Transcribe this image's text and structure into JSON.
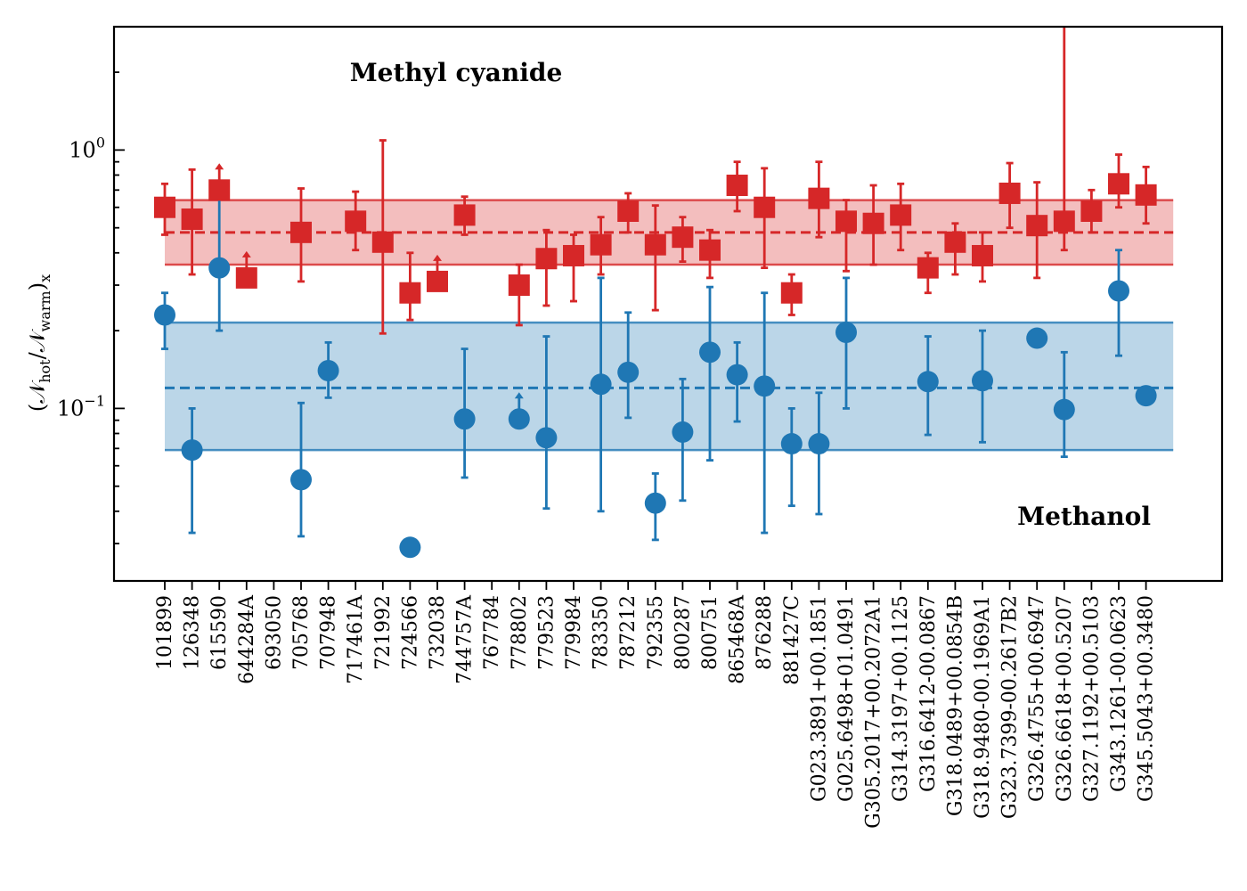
{
  "chart_data": {
    "type": "scatter",
    "title": "",
    "xlabel": "",
    "ylabel_main": "(𝒩",
    "ylabel_sub_hot": "hot",
    "ylabel_mid": "/𝒩",
    "ylabel_sub_warm": "warm",
    "ylabel_close": ")",
    "ylabel_sub_x": "x",
    "yscale": "log",
    "ylim": [
      0.0215,
      3.0
    ],
    "yticks": [
      {
        "value": 1.0,
        "base": "10",
        "exp": "0"
      },
      {
        "value": 0.1,
        "base": "10",
        "exp": "−1"
      }
    ],
    "grid": false,
    "categories": [
      "101899",
      "126348",
      "615590",
      "644284A",
      "693050",
      "705768",
      "707948",
      "717461A",
      "721992",
      "724566",
      "732038",
      "744757A",
      "767784",
      "778802",
      "779523",
      "779984",
      "783350",
      "787212",
      "792355",
      "800287",
      "800751",
      "865468A",
      "876288",
      "881427C",
      "G023.3891+00.1851",
      "G025.6498+01.0491",
      "G305.2017+00.2072A1",
      "G314.3197+00.1125",
      "G316.6412-00.0867",
      "G318.0489+00.0854B",
      "G318.9480-00.1969A1",
      "G323.7399-00.2617B2",
      "G326.4755+00.6947",
      "G326.6618+00.5207",
      "G327.1192+00.5103",
      "G343.1261-00.0623",
      "G345.5043+00.3480"
    ],
    "series": [
      {
        "name": "Methyl cyanide",
        "color": "#d62728",
        "marker": "square",
        "points": [
          {
            "cat": 0,
            "y": 0.6,
            "lo": 0.47,
            "hi": 0.74
          },
          {
            "cat": 1,
            "y": 0.54,
            "lo": 0.33,
            "hi": 0.84
          },
          {
            "cat": 2,
            "y": 0.7,
            "limit": "lower"
          },
          {
            "cat": 3,
            "y": 0.32,
            "limit": "lower"
          },
          {
            "cat": 5,
            "y": 0.48,
            "lo": 0.31,
            "hi": 0.71
          },
          {
            "cat": 7,
            "y": 0.53,
            "lo": 0.41,
            "hi": 0.69
          },
          {
            "cat": 8,
            "y": 0.44,
            "lo": 0.195,
            "hi": 1.09
          },
          {
            "cat": 9,
            "y": 0.28,
            "lo": 0.22,
            "hi": 0.4
          },
          {
            "cat": 10,
            "y": 0.31,
            "limit": "lower"
          },
          {
            "cat": 11,
            "y": 0.56,
            "lo": 0.47,
            "hi": 0.66
          },
          {
            "cat": 13,
            "y": 0.3,
            "lo": 0.21,
            "hi": 0.36
          },
          {
            "cat": 14,
            "y": 0.38,
            "lo": 0.25,
            "hi": 0.49
          },
          {
            "cat": 15,
            "y": 0.39,
            "lo": 0.26,
            "hi": 0.47
          },
          {
            "cat": 16,
            "y": 0.43,
            "lo": 0.33,
            "hi": 0.55
          },
          {
            "cat": 17,
            "y": 0.58,
            "lo": 0.48,
            "hi": 0.68
          },
          {
            "cat": 18,
            "y": 0.43,
            "lo": 0.24,
            "hi": 0.61
          },
          {
            "cat": 19,
            "y": 0.46,
            "lo": 0.37,
            "hi": 0.55
          },
          {
            "cat": 20,
            "y": 0.41,
            "lo": 0.32,
            "hi": 0.49
          },
          {
            "cat": 21,
            "y": 0.73,
            "lo": 0.58,
            "hi": 0.9
          },
          {
            "cat": 22,
            "y": 0.6,
            "lo": 0.35,
            "hi": 0.85
          },
          {
            "cat": 23,
            "y": 0.28,
            "lo": 0.23,
            "hi": 0.33
          },
          {
            "cat": 24,
            "y": 0.65,
            "lo": 0.46,
            "hi": 0.9
          },
          {
            "cat": 25,
            "y": 0.53,
            "lo": 0.34,
            "hi": 0.64
          },
          {
            "cat": 26,
            "y": 0.52,
            "lo": 0.36,
            "hi": 0.73
          },
          {
            "cat": 27,
            "y": 0.56,
            "lo": 0.41,
            "hi": 0.74
          },
          {
            "cat": 28,
            "y": 0.35,
            "lo": 0.28,
            "hi": 0.4
          },
          {
            "cat": 29,
            "y": 0.44,
            "lo": 0.33,
            "hi": 0.52
          },
          {
            "cat": 30,
            "y": 0.39,
            "lo": 0.31,
            "hi": 0.48
          },
          {
            "cat": 31,
            "y": 0.68,
            "lo": 0.5,
            "hi": 0.89
          },
          {
            "cat": 32,
            "y": 0.51,
            "lo": 0.32,
            "hi": 0.75
          },
          {
            "cat": 33,
            "y": 0.53,
            "lo": 0.41,
            "hi": 3.0
          },
          {
            "cat": 34,
            "y": 0.58,
            "lo": 0.48,
            "hi": 0.7
          },
          {
            "cat": 35,
            "y": 0.74,
            "lo": 0.6,
            "hi": 0.96
          },
          {
            "cat": 36,
            "y": 0.67,
            "lo": 0.52,
            "hi": 0.86
          }
        ],
        "median": 0.48,
        "band": [
          0.36,
          0.64
        ]
      },
      {
        "name": "Methanol",
        "color": "#1f77b4",
        "marker": "circle",
        "points": [
          {
            "cat": 0,
            "y": 0.23,
            "lo": 0.17,
            "hi": 0.28
          },
          {
            "cat": 1,
            "y": 0.069,
            "lo": 0.033,
            "hi": 0.1
          },
          {
            "cat": 2,
            "y": 0.35,
            "lo": 0.2,
            "hi": 0.68
          },
          {
            "cat": 5,
            "y": 0.053,
            "lo": 0.032,
            "hi": 0.105
          },
          {
            "cat": 6,
            "y": 0.14,
            "lo": 0.11,
            "hi": 0.18
          },
          {
            "cat": 9,
            "y": 0.029
          },
          {
            "cat": 11,
            "y": 0.091,
            "lo": 0.054,
            "hi": 0.17
          },
          {
            "cat": 13,
            "y": 0.091,
            "limit": "lower"
          },
          {
            "cat": 14,
            "y": 0.077,
            "lo": 0.041,
            "hi": 0.19
          },
          {
            "cat": 16,
            "y": 0.124,
            "lo": 0.04,
            "hi": 0.32
          },
          {
            "cat": 17,
            "y": 0.138,
            "lo": 0.092,
            "hi": 0.235
          },
          {
            "cat": 18,
            "y": 0.043,
            "lo": 0.031,
            "hi": 0.056
          },
          {
            "cat": 19,
            "y": 0.081,
            "lo": 0.044,
            "hi": 0.13
          },
          {
            "cat": 20,
            "y": 0.165,
            "lo": 0.063,
            "hi": 0.295
          },
          {
            "cat": 21,
            "y": 0.135,
            "lo": 0.089,
            "hi": 0.18
          },
          {
            "cat": 22,
            "y": 0.122,
            "lo": 0.033,
            "hi": 0.28
          },
          {
            "cat": 23,
            "y": 0.073,
            "lo": 0.042,
            "hi": 0.1
          },
          {
            "cat": 24,
            "y": 0.073,
            "lo": 0.039,
            "hi": 0.115
          },
          {
            "cat": 25,
            "y": 0.197,
            "lo": 0.1,
            "hi": 0.32
          },
          {
            "cat": 28,
            "y": 0.127,
            "lo": 0.079,
            "hi": 0.19
          },
          {
            "cat": 30,
            "y": 0.128,
            "lo": 0.074,
            "hi": 0.2
          },
          {
            "cat": 32,
            "y": 0.187
          },
          {
            "cat": 33,
            "y": 0.099,
            "lo": 0.065,
            "hi": 0.165
          },
          {
            "cat": 35,
            "y": 0.285,
            "lo": 0.16,
            "hi": 0.41
          },
          {
            "cat": 36,
            "y": 0.112
          }
        ],
        "median": 0.12,
        "band": [
          0.069,
          0.215
        ]
      }
    ],
    "annotations": [
      {
        "text": "Methyl cyanide",
        "color": "#d94c4c"
      },
      {
        "text": "Methanol",
        "color": "#4a8fc4"
      }
    ]
  }
}
